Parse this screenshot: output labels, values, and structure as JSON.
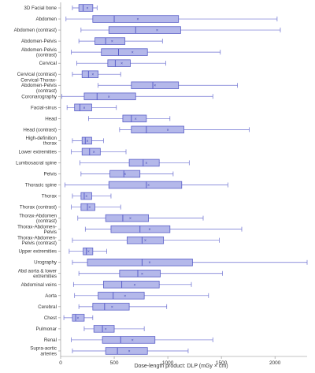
{
  "chart_data": {
    "type": "box",
    "orientation": "horizontal",
    "xlabel": "Dose-length product: DLP (mGy × cm)",
    "xlim": [
      0,
      2300
    ],
    "xticks": [
      0,
      500,
      1000,
      1500,
      2000
    ],
    "grid": false,
    "legend": "none",
    "colors": {
      "box_fill": "#b4b8ea",
      "box_stroke": "#5a5fc8",
      "whisker": "#6a6ed0",
      "mean_marker": "#3b3fb0"
    },
    "categories": [
      {
        "label": [
          "3D Facial bone"
        ],
        "stats": {
          "min": 110,
          "q1": 170,
          "median": 210,
          "q3": 300,
          "max": 340,
          "mean": 250
        }
      },
      {
        "label": [
          "Abdomen"
        ],
        "stats": {
          "min": 50,
          "q1": 300,
          "median": 500,
          "q3": 1100,
          "max": 2020,
          "mean": 720
        }
      },
      {
        "label": [
          "Abdomen (contrast)"
        ],
        "stats": {
          "min": 190,
          "q1": 450,
          "median": 700,
          "q3": 1120,
          "max": 2050,
          "mean": 900
        }
      },
      {
        "label": [
          "Abdomen-Pelvis"
        ],
        "stats": {
          "min": 170,
          "q1": 320,
          "median": 420,
          "q3": 600,
          "max": 950,
          "mean": 480
        }
      },
      {
        "label": [
          "Abdomen-Pelvis",
          "(contrast)"
        ],
        "stats": {
          "min": 100,
          "q1": 380,
          "median": 540,
          "q3": 810,
          "max": 1490,
          "mean": 670
        }
      },
      {
        "label": [
          "Cervical"
        ],
        "stats": {
          "min": 150,
          "q1": 440,
          "median": 510,
          "q3": 650,
          "max": 980,
          "mean": 570
        }
      },
      {
        "label": [
          "Cervical (contrast)"
        ],
        "stats": {
          "min": 110,
          "q1": 200,
          "median": 260,
          "q3": 350,
          "max": 560,
          "mean": 300
        }
      },
      {
        "label": [
          "Cervical-Thorax-",
          "Abdomen-Pelvis",
          "(contrast)"
        ],
        "stats": {
          "min": 350,
          "q1": 660,
          "median": 860,
          "q3": 1100,
          "max": 1650,
          "mean": 880
        }
      },
      {
        "label": [
          "Coronarography"
        ],
        "stats": {
          "min": 10,
          "q1": 220,
          "median": 340,
          "q3": 700,
          "max": 1420,
          "mean": 450
        }
      },
      {
        "label": [
          "Facial-sinus"
        ],
        "stats": {
          "min": 60,
          "q1": 130,
          "median": 180,
          "q3": 290,
          "max": 520,
          "mean": 220
        }
      },
      {
        "label": [
          "Head"
        ],
        "stats": {
          "min": 260,
          "q1": 580,
          "median": 660,
          "q3": 800,
          "max": 1020,
          "mean": 700
        }
      },
      {
        "label": [
          "Head (contrast)"
        ],
        "stats": {
          "min": 550,
          "q1": 660,
          "median": 800,
          "q3": 1150,
          "max": 1760,
          "mean": 1000
        }
      },
      {
        "label": [
          "High-definition",
          "thorax"
        ],
        "stats": {
          "min": 110,
          "q1": 200,
          "median": 230,
          "q3": 290,
          "max": 400,
          "mean": 250
        }
      },
      {
        "label": [
          "Lower extremities"
        ],
        "stats": {
          "min": 100,
          "q1": 200,
          "median": 270,
          "q3": 370,
          "max": 610,
          "mean": 310
        }
      },
      {
        "label": [
          "Lumbosacral spine"
        ],
        "stats": {
          "min": 180,
          "q1": 640,
          "median": 770,
          "q3": 920,
          "max": 1200,
          "mean": 800
        }
      },
      {
        "label": [
          "Pelvis"
        ],
        "stats": {
          "min": 190,
          "q1": 460,
          "median": 590,
          "q3": 740,
          "max": 1050,
          "mean": 600
        }
      },
      {
        "label": [
          "Thoracic spine"
        ],
        "stats": {
          "min": 40,
          "q1": 450,
          "median": 800,
          "q3": 1130,
          "max": 1560,
          "mean": 820
        }
      },
      {
        "label": [
          "Thorax"
        ],
        "stats": {
          "min": 110,
          "q1": 190,
          "median": 220,
          "q3": 290,
          "max": 470,
          "mean": 240
        }
      },
      {
        "label": [
          "Thorax (contrast)"
        ],
        "stats": {
          "min": 100,
          "q1": 190,
          "median": 250,
          "q3": 320,
          "max": 560,
          "mean": 270
        }
      },
      {
        "label": [
          "Thorax-Abdomen",
          "(contrast)"
        ],
        "stats": {
          "min": 160,
          "q1": 420,
          "median": 580,
          "q3": 820,
          "max": 1330,
          "mean": 650
        }
      },
      {
        "label": [
          "Thorax-Abdomen-",
          "Pelvis"
        ],
        "stats": {
          "min": 230,
          "q1": 470,
          "median": 740,
          "q3": 1020,
          "max": 1690,
          "mean": 830
        }
      },
      {
        "label": [
          "Thorax-Abdomen-",
          "Pelvis (contrast)"
        ],
        "stats": {
          "min": 110,
          "q1": 620,
          "median": 760,
          "q3": 960,
          "max": 1480,
          "mean": 790
        }
      },
      {
        "label": [
          "Upper extremities"
        ],
        "stats": {
          "min": 80,
          "q1": 210,
          "median": 240,
          "q3": 300,
          "max": 430,
          "mean": 260
        }
      },
      {
        "label": [
          "Urography"
        ],
        "stats": {
          "min": 110,
          "q1": 250,
          "median": 760,
          "q3": 1230,
          "max": 2300,
          "mean": 830
        }
      },
      {
        "label": [
          "Abd aorta & lower",
          "extremities"
        ],
        "stats": {
          "min": 170,
          "q1": 550,
          "median": 720,
          "q3": 930,
          "max": 1510,
          "mean": 760
        }
      },
      {
        "label": [
          "Abdominal veins"
        ],
        "stats": {
          "min": 120,
          "q1": 400,
          "median": 570,
          "q3": 920,
          "max": 1220,
          "mean": 690
        }
      },
      {
        "label": [
          "Aorta"
        ],
        "stats": {
          "min": 130,
          "q1": 350,
          "median": 490,
          "q3": 780,
          "max": 1380,
          "mean": 600
        }
      },
      {
        "label": [
          "Cerebral"
        ],
        "stats": {
          "min": 170,
          "q1": 300,
          "median": 410,
          "q3": 640,
          "max": 990,
          "mean": 480
        }
      },
      {
        "label": [
          "Chest"
        ],
        "stats": {
          "min": 30,
          "q1": 110,
          "median": 140,
          "q3": 220,
          "max": 300,
          "mean": 160
        }
      },
      {
        "label": [
          "Pulmonar"
        ],
        "stats": {
          "min": 220,
          "q1": 310,
          "median": 390,
          "q3": 500,
          "max": 780,
          "mean": 420
        }
      },
      {
        "label": [
          "Renal"
        ],
        "stats": {
          "min": 100,
          "q1": 390,
          "median": 560,
          "q3": 880,
          "max": 1420,
          "mean": 670
        }
      },
      {
        "label": [
          "Supra-aortic",
          "arteries"
        ],
        "stats": {
          "min": 110,
          "q1": 420,
          "median": 530,
          "q3": 810,
          "max": 1190,
          "mean": 640
        }
      }
    ]
  }
}
